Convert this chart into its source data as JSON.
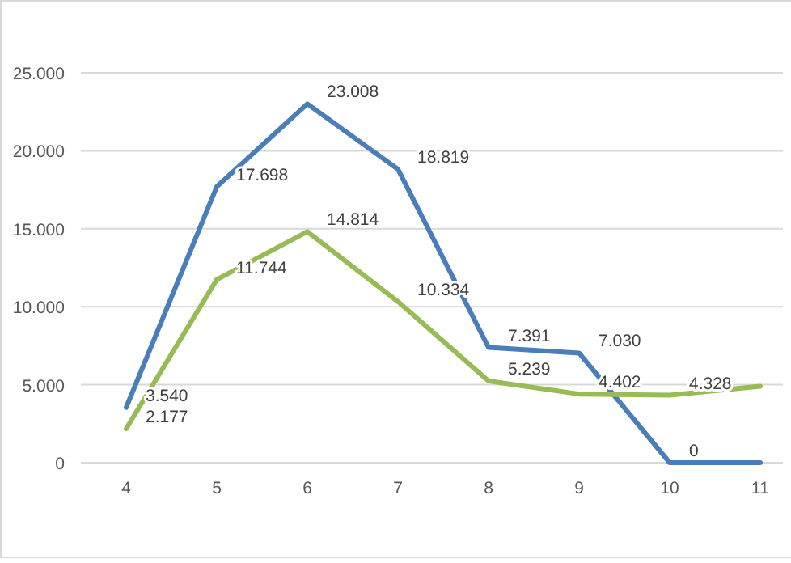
{
  "chart_data": {
    "type": "line",
    "categories": [
      "4",
      "5",
      "6",
      "7",
      "8",
      "9",
      "10",
      "11"
    ],
    "series": [
      {
        "color": "#4a7ebb",
        "values": [
          3540,
          17698,
          23008,
          18819,
          7391,
          7030,
          0,
          0
        ],
        "value_labels": [
          "3.540",
          "17.698",
          "23.008",
          "18.819",
          "7.391",
          "7.030",
          "0",
          null
        ]
      },
      {
        "color": "#98bb55",
        "values": [
          2177,
          11744,
          14814,
          10334,
          5239,
          4402,
          4328,
          4900
        ],
        "value_labels": [
          "2.177",
          "11.744",
          "14.814",
          "10.334",
          "5.239",
          "4.402",
          "4.328",
          null
        ]
      }
    ],
    "ylim": [
      0,
      25000
    ],
    "yticks": [
      {
        "value": 0,
        "label": "0"
      },
      {
        "value": 5000,
        "label": "5.000"
      },
      {
        "value": 10000,
        "label": "10.000"
      },
      {
        "value": 15000,
        "label": "15.000"
      },
      {
        "value": 20000,
        "label": "20.000"
      },
      {
        "value": 25000,
        "label": "25.000"
      }
    ],
    "grid": "y",
    "marker": "none",
    "line_style": "solid"
  }
}
